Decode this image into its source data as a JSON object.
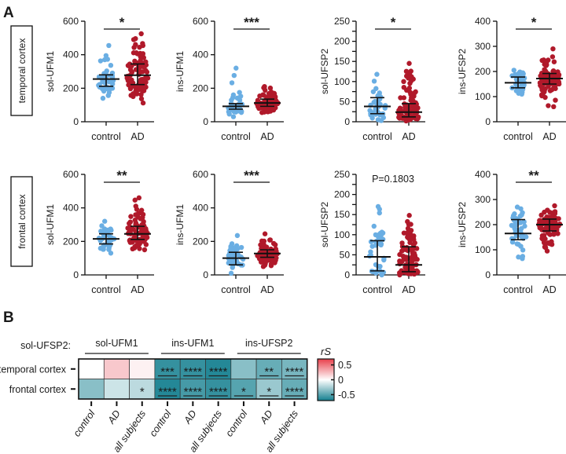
{
  "panel_labels": {
    "a": "A",
    "b": "B"
  },
  "row_labels": [
    "temporal cortex",
    "frontal cortex"
  ],
  "colors": {
    "control": "#6aaee3",
    "AD": "#b0192a",
    "heat_pos": "#e8404b",
    "heat_neg": "#137f8f"
  },
  "chart_data": [
    {
      "type": "scatter",
      "region": "temporal cortex",
      "ylabel": "sol-UFM1",
      "ylim": [
        0,
        600
      ],
      "ticks": [
        0,
        200,
        400,
        600
      ],
      "categories": [
        "control",
        "AD"
      ],
      "significance": "*",
      "groups": [
        {
          "name": "control",
          "n": 40,
          "median": 255,
          "q1": 212,
          "q3": 280,
          "min": 140,
          "max": 455
        },
        {
          "name": "AD",
          "n": 90,
          "median": 278,
          "q1": 222,
          "q3": 345,
          "min": 112,
          "max": 525
        }
      ]
    },
    {
      "type": "scatter",
      "region": "temporal cortex",
      "ylabel": "ins-UFM1",
      "ylim": [
        0,
        600
      ],
      "ticks": [
        0,
        200,
        400,
        600
      ],
      "categories": [
        "control",
        "AD"
      ],
      "significance": "***",
      "groups": [
        {
          "name": "control",
          "n": 40,
          "median": 92,
          "q1": 75,
          "q3": 108,
          "min": 30,
          "max": 320
        },
        {
          "name": "AD",
          "n": 90,
          "median": 112,
          "q1": 92,
          "q3": 135,
          "min": 55,
          "max": 210
        }
      ]
    },
    {
      "type": "scatter",
      "region": "temporal cortex",
      "ylabel": "sol-UFSP2",
      "ylim": [
        0,
        250
      ],
      "ticks": [
        0,
        25,
        50,
        75,
        100,
        125,
        150,
        175,
        200,
        225,
        250
      ],
      "categories": [
        "control",
        "AD"
      ],
      "significance": "*",
      "groups": [
        {
          "name": "control",
          "n": 40,
          "median": 38,
          "q1": 20,
          "q3": 60,
          "min": 3,
          "max": 118
        },
        {
          "name": "AD",
          "n": 90,
          "median": 24,
          "q1": 12,
          "q3": 45,
          "min": 2,
          "max": 145
        }
      ]
    },
    {
      "type": "scatter",
      "region": "temporal cortex",
      "ylabel": "ins-UFSP2",
      "ylim": [
        0,
        400
      ],
      "ticks": [
        0,
        100,
        200,
        300,
        400
      ],
      "categories": [
        "control",
        "AD"
      ],
      "significance": "*",
      "groups": [
        {
          "name": "control",
          "n": 40,
          "median": 155,
          "q1": 135,
          "q3": 178,
          "min": 110,
          "max": 205
        },
        {
          "name": "AD",
          "n": 90,
          "median": 172,
          "q1": 150,
          "q3": 192,
          "min": 60,
          "max": 290
        }
      ]
    },
    {
      "type": "scatter",
      "region": "frontal cortex",
      "ylabel": "sol-UFM1",
      "ylim": [
        0,
        600
      ],
      "ticks": [
        0,
        200,
        400,
        600
      ],
      "categories": [
        "control",
        "AD"
      ],
      "significance": "**",
      "groups": [
        {
          "name": "control",
          "n": 40,
          "median": 215,
          "q1": 185,
          "q3": 245,
          "min": 130,
          "max": 320
        },
        {
          "name": "AD",
          "n": 90,
          "median": 245,
          "q1": 212,
          "q3": 290,
          "min": 150,
          "max": 460
        }
      ]
    },
    {
      "type": "scatter",
      "region": "frontal cortex",
      "ylabel": "ins-UFM1",
      "ylim": [
        0,
        600
      ],
      "ticks": [
        0,
        200,
        400,
        600
      ],
      "categories": [
        "control",
        "AD"
      ],
      "significance": "***",
      "groups": [
        {
          "name": "control",
          "n": 40,
          "median": 100,
          "q1": 60,
          "q3": 135,
          "min": 10,
          "max": 235
        },
        {
          "name": "AD",
          "n": 90,
          "median": 128,
          "q1": 105,
          "q3": 150,
          "min": 50,
          "max": 245
        }
      ]
    },
    {
      "type": "scatter",
      "region": "frontal cortex",
      "ylabel": "sol-UFSP2",
      "ylim": [
        0,
        250
      ],
      "ticks": [
        0,
        25,
        50,
        75,
        100,
        125,
        150,
        175,
        200,
        225,
        250
      ],
      "categories": [
        "control",
        "AD"
      ],
      "significance": "P=0.1803",
      "groups": [
        {
          "name": "control",
          "n": 40,
          "median": 45,
          "q1": 10,
          "q3": 85,
          "min": 0,
          "max": 170
        },
        {
          "name": "AD",
          "n": 90,
          "median": 25,
          "q1": 8,
          "q3": 70,
          "min": 0,
          "max": 148
        }
      ]
    },
    {
      "type": "scatter",
      "region": "frontal cortex",
      "ylabel": "ins-UFSP2",
      "ylim": [
        0,
        400
      ],
      "ticks": [
        0,
        100,
        200,
        300,
        400
      ],
      "categories": [
        "control",
        "AD"
      ],
      "significance": "**",
      "groups": [
        {
          "name": "control",
          "n": 40,
          "median": 165,
          "q1": 140,
          "q3": 220,
          "min": 65,
          "max": 270
        },
        {
          "name": "AD",
          "n": 90,
          "median": 200,
          "q1": 175,
          "q3": 222,
          "min": 95,
          "max": 275
        }
      ]
    },
    {
      "type": "heatmap",
      "row_header": "sol-UFSP2:",
      "groups": [
        "sol-UFM1",
        "ins-UFM1",
        "ins-UFSP2"
      ],
      "columns": [
        "control",
        "AD",
        "all subjects",
        "control",
        "AD",
        "all subjects",
        "control",
        "AD",
        "all subjects"
      ],
      "rows": [
        "temporal cortex",
        "frontal cortex"
      ],
      "values": [
        [
          0.0,
          0.2,
          0.05,
          -0.6,
          -0.6,
          -0.65,
          -0.35,
          -0.45,
          -0.4
        ],
        [
          -0.35,
          -0.15,
          -0.2,
          -0.65,
          -0.55,
          -0.6,
          -0.5,
          -0.3,
          -0.45
        ]
      ],
      "stars": [
        [
          "",
          "",
          "",
          "***",
          "****",
          "****",
          "",
          "**",
          "****"
        ],
        [
          "",
          "",
          "*",
          "****",
          "****",
          "****",
          "*",
          "*",
          "****"
        ]
      ],
      "colorbar": {
        "label": "rS",
        "ticks": [
          "0.5",
          "0",
          "-0.5"
        ],
        "range": [
          -0.7,
          0.7
        ]
      }
    }
  ]
}
